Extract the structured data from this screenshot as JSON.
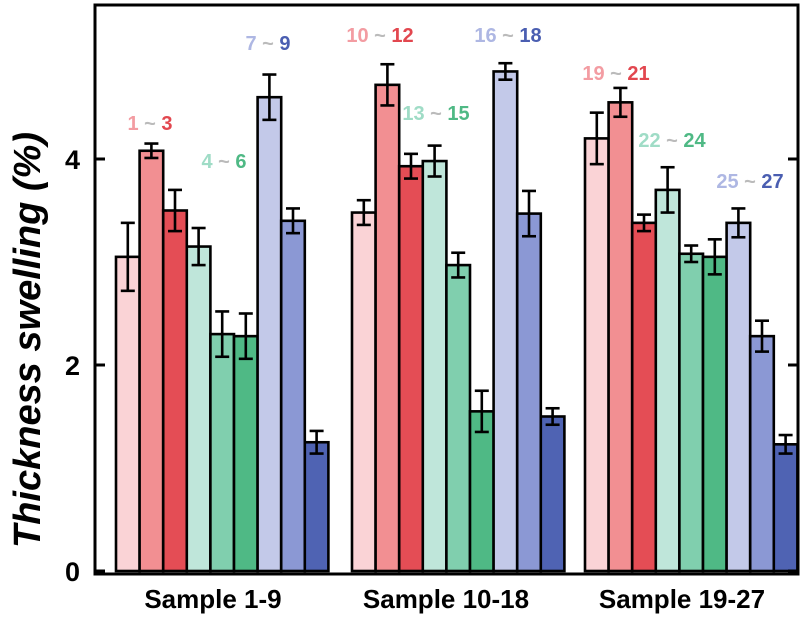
{
  "chart_data": {
    "type": "bar",
    "title": "",
    "xlabel": "",
    "ylabel": "Thickness swelling  (%)",
    "ylim": [
      0,
      5.4
    ],
    "yticks": [
      0,
      2,
      4
    ],
    "grid": false,
    "categories": [
      "Sample 1-9",
      "Sample 10-18",
      "Sample 19-27"
    ],
    "bars_per_group": 9,
    "groups": [
      {
        "category": "Sample 1-9",
        "values": [
          3.05,
          4.08,
          3.5,
          3.15,
          2.3,
          2.28,
          4.6,
          3.4,
          1.25
        ],
        "errors": [
          0.33,
          0.07,
          0.2,
          0.18,
          0.22,
          0.22,
          0.22,
          0.12,
          0.11
        ]
      },
      {
        "category": "Sample 10-18",
        "values": [
          3.48,
          4.72,
          3.93,
          3.98,
          2.97,
          1.55,
          4.85,
          3.47,
          1.5
        ],
        "errors": [
          0.12,
          0.2,
          0.12,
          0.15,
          0.12,
          0.2,
          0.08,
          0.22,
          0.08
        ]
      },
      {
        "category": "Sample 19-27",
        "values": [
          4.2,
          4.55,
          3.38,
          3.7,
          3.08,
          3.05,
          3.38,
          2.28,
          1.23
        ],
        "errors": [
          0.25,
          0.14,
          0.08,
          0.22,
          0.08,
          0.17,
          0.14,
          0.15,
          0.09
        ]
      }
    ],
    "bar_colors": [
      "#fad3d6",
      "#f28f92",
      "#e44d55",
      "#bfe6da",
      "#80cfae",
      "#4fb985",
      "#c3c9e9",
      "#8b98d4",
      "#4f63b3"
    ],
    "annotations": [
      {
        "text": [
          "1",
          " ~ ",
          "3"
        ],
        "colors": [
          "#f39ca2",
          "#bbbbbb",
          "#e2474f"
        ]
      },
      {
        "text": [
          "4",
          " ~ ",
          "6"
        ],
        "colors": [
          "#9fdcc6",
          "#bbbbbb",
          "#4fb985"
        ]
      },
      {
        "text": [
          "7",
          " ~ ",
          "9"
        ],
        "colors": [
          "#aeb7e3",
          "#bbbbbb",
          "#4a5eb1"
        ]
      },
      {
        "text": [
          "10",
          " ~ ",
          "12"
        ],
        "colors": [
          "#f39ca2",
          "#bbbbbb",
          "#e2474f"
        ]
      },
      {
        "text": [
          "13",
          " ~ ",
          "15"
        ],
        "colors": [
          "#9fdcc6",
          "#bbbbbb",
          "#4fb985"
        ]
      },
      {
        "text": [
          "16",
          " ~ ",
          "18"
        ],
        "colors": [
          "#aeb7e3",
          "#bbbbbb",
          "#4a5eb1"
        ]
      },
      {
        "text": [
          "19",
          " ~ ",
          "21"
        ],
        "colors": [
          "#f39ca2",
          "#bbbbbb",
          "#e2474f"
        ]
      },
      {
        "text": [
          "22",
          " ~ ",
          "24"
        ],
        "colors": [
          "#9fdcc6",
          "#bbbbbb",
          "#4fb985"
        ]
      },
      {
        "text": [
          "25",
          " ~ ",
          "27"
        ],
        "colors": [
          "#aeb7e3",
          "#bbbbbb",
          "#4a5eb1"
        ]
      }
    ]
  }
}
